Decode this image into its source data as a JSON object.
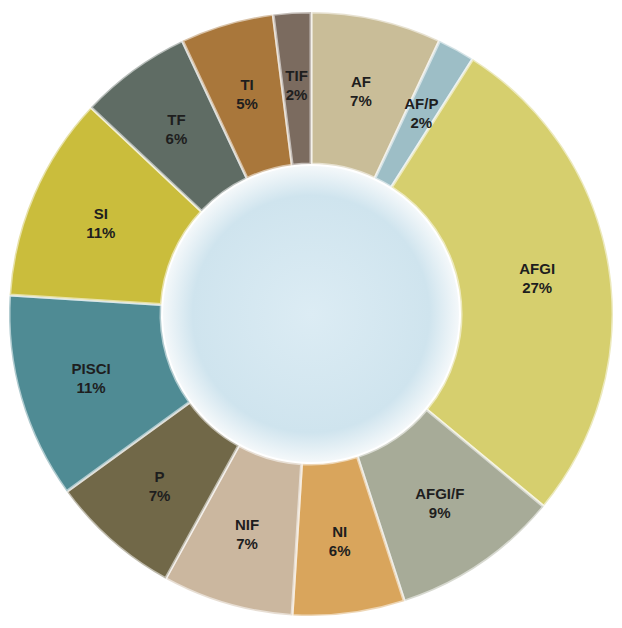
{
  "chart_data": {
    "type": "pie",
    "categories": [
      "AF",
      "AF/P",
      "AFGI",
      "AFGI/F",
      "NI",
      "NIF",
      "P",
      "PISCI",
      "SI",
      "TF",
      "TI",
      "TIF"
    ],
    "values": [
      7,
      2,
      27,
      9,
      6,
      7,
      7,
      11,
      11,
      6,
      5,
      2
    ],
    "value_labels": [
      "7%",
      "2%",
      "27%",
      "9%",
      "6%",
      "7%",
      "7%",
      "11%",
      "11%",
      "6%",
      "5%",
      "2%"
    ],
    "colors": [
      "#c9bd98",
      "#9dbec6",
      "#d6cf6e",
      "#a7ab98",
      "#d9a55c",
      "#cbb79f",
      "#716848",
      "#4f8b94",
      "#cabd3c",
      "#5f6c64",
      "#a9773b",
      "#7b6b5f"
    ],
    "data_labels": true
  }
}
